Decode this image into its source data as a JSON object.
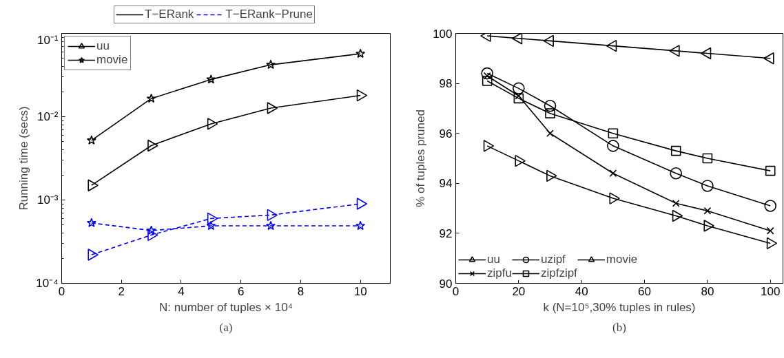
{
  "chart_data": [
    {
      "type": "line",
      "title": "(a)",
      "xlabel": "N: number of tuples × 10⁴",
      "ylabel": "Running time (secs)",
      "x": [
        1,
        3,
        5,
        7,
        10
      ],
      "log": "y",
      "grid": false,
      "legend": "top left",
      "xlim": [
        0,
        11
      ],
      "xticks": [
        0,
        2,
        4,
        6,
        8,
        10
      ],
      "ylim": [
        0.0001,
        0.1
      ],
      "yticks": [
        {
          "value": 0.0001,
          "label": "10⁻⁴"
        },
        {
          "value": 0.001,
          "label": "10⁻³"
        },
        {
          "value": 0.01,
          "label": "10⁻²"
        },
        {
          "value": 0.1,
          "label": "10⁻¹"
        }
      ],
      "series": [
        {
          "name": "T−ERank",
          "color": "#000000",
          "line_style": "solid",
          "marker": "none",
          "values": [
            null,
            null,
            null,
            null,
            null
          ]
        },
        {
          "name": "T−ERank−Prune",
          "color": "#0000ff",
          "line_style": "dashed",
          "marker": "none",
          "values": [
            null,
            null,
            null,
            null,
            null
          ]
        },
        {
          "name": "uu",
          "color": "#000000",
          "line_style": "solid",
          "marker": "triangle_right",
          "values": [
            0.0015,
            0.0045,
            0.0082,
            0.0127,
            0.018
          ]
        },
        {
          "name": "movie",
          "color": "#000000",
          "line_style": "solid",
          "marker": "star",
          "values": [
            0.0052,
            0.0165,
            0.028,
            0.042,
            0.057
          ]
        },
        {
          "color": "#0000ff",
          "line_style": "dashed",
          "marker": "triangle_right",
          "values": [
            0.00022,
            0.00038,
            0.0006,
            0.00066,
            0.0009
          ]
        },
        {
          "color": "#0000ff",
          "line_style": "dashed",
          "marker": "star",
          "values": [
            0.00053,
            0.00043,
            0.00049,
            0.00049,
            0.00049
          ]
        }
      ]
    },
    {
      "type": "line",
      "title": "(b)",
      "xlabel": "k (N=10⁵,30% tuples in rules)",
      "ylabel": "% of tuples pruned",
      "x": [
        10,
        20,
        30,
        50,
        70,
        80,
        100
      ],
      "grid": false,
      "legend": "bottom left",
      "xlim": [
        0,
        104
      ],
      "xticks": [
        0,
        20,
        40,
        60,
        80,
        100
      ],
      "ylim": [
        90,
        100
      ],
      "yticks": [
        90,
        92,
        94,
        96,
        98,
        100
      ],
      "series": [
        {
          "name": "uu",
          "color": "#000000",
          "line_style": "solid",
          "marker": "triangle_right",
          "values": [
            95.5,
            94.9,
            94.3,
            93.4,
            92.7,
            92.3,
            91.6
          ]
        },
        {
          "name": "zipfu",
          "color": "#000000",
          "line_style": "solid",
          "marker": "cross",
          "values": [
            98.3,
            97.5,
            96.0,
            94.4,
            93.2,
            92.9,
            92.1
          ]
        },
        {
          "name": "uzipf",
          "color": "#000000",
          "line_style": "solid",
          "marker": "circle",
          "values": [
            98.4,
            97.8,
            97.1,
            95.5,
            94.4,
            93.9,
            93.1
          ]
        },
        {
          "name": "zipfzipf",
          "color": "#000000",
          "line_style": "solid",
          "marker": "square",
          "values": [
            98.1,
            97.4,
            96.8,
            96.0,
            95.3,
            95.0,
            94.5
          ]
        },
        {
          "name": "movie",
          "color": "#000000",
          "line_style": "solid",
          "marker": "triangle_left",
          "values": [
            99.9,
            99.8,
            99.7,
            99.5,
            99.3,
            99.2,
            99.0
          ]
        }
      ]
    }
  ]
}
